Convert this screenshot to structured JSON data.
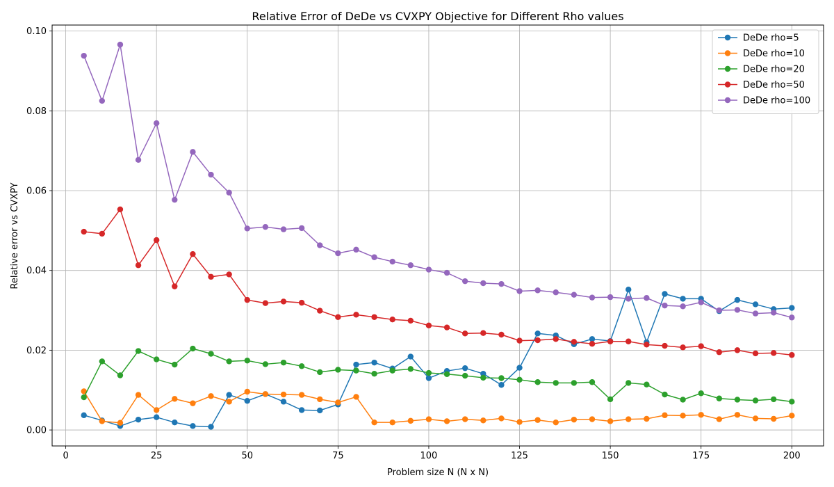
{
  "chart_data": {
    "type": "line",
    "title": "Relative Error of DeDe vs CVXPY Objective for Different Rho values",
    "xlabel": "Problem size N (N x N)",
    "ylabel": "Relative error vs CVXPY",
    "xlim": [
      -3.75,
      208.75
    ],
    "ylim": [
      -0.004,
      0.1015
    ],
    "xticks": [
      0,
      25,
      50,
      75,
      100,
      125,
      150,
      175,
      200
    ],
    "yticks": [
      0.0,
      0.02,
      0.04,
      0.06,
      0.08,
      0.1
    ],
    "ytick_labels": [
      "0.00",
      "0.02",
      "0.04",
      "0.06",
      "0.08",
      "0.10"
    ],
    "grid": true,
    "legend_position": "top-right",
    "x": [
      5,
      10,
      15,
      20,
      25,
      30,
      35,
      40,
      45,
      50,
      55,
      60,
      65,
      70,
      75,
      80,
      85,
      90,
      95,
      100,
      105,
      110,
      115,
      120,
      125,
      130,
      135,
      140,
      145,
      150,
      155,
      160,
      165,
      170,
      175,
      180,
      185,
      190,
      195,
      200
    ],
    "series": [
      {
        "name": "DeDe rho=5",
        "color": "#1f77b4",
        "values": [
          0.0037,
          0.0024,
          0.001,
          0.0026,
          0.0032,
          0.0019,
          0.001,
          0.0008,
          0.0088,
          0.0073,
          0.009,
          0.0071,
          0.005,
          0.0049,
          0.0064,
          0.0164,
          0.0169,
          0.0154,
          0.0184,
          0.013,
          0.0148,
          0.0155,
          0.0141,
          0.0113,
          0.0156,
          0.0242,
          0.0237,
          0.0215,
          0.0228,
          0.0223,
          0.0352,
          0.022,
          0.0341,
          0.0329,
          0.0329,
          0.0298,
          0.0326,
          0.0315,
          0.0303,
          0.0306
        ]
      },
      {
        "name": "DeDe rho=10",
        "color": "#ff7f0e",
        "values": [
          0.0097,
          0.0022,
          0.0018,
          0.0088,
          0.005,
          0.0078,
          0.0067,
          0.0085,
          0.0071,
          0.0096,
          0.009,
          0.0089,
          0.0088,
          0.0077,
          0.0069,
          0.0083,
          0.0019,
          0.0019,
          0.0023,
          0.0027,
          0.0022,
          0.0027,
          0.0024,
          0.0029,
          0.002,
          0.0025,
          0.0019,
          0.0026,
          0.0027,
          0.0022,
          0.0027,
          0.0028,
          0.0037,
          0.0036,
          0.0038,
          0.0027,
          0.0038,
          0.0029,
          0.0028,
          0.0036
        ]
      },
      {
        "name": "DeDe rho=20",
        "color": "#2ca02c",
        "values": [
          0.0082,
          0.0172,
          0.0137,
          0.0198,
          0.0177,
          0.0164,
          0.0204,
          0.0191,
          0.0172,
          0.0174,
          0.0165,
          0.0169,
          0.016,
          0.0145,
          0.0151,
          0.0149,
          0.0141,
          0.0149,
          0.0153,
          0.0143,
          0.014,
          0.0136,
          0.0131,
          0.013,
          0.0126,
          0.012,
          0.0118,
          0.0118,
          0.012,
          0.0077,
          0.0118,
          0.0114,
          0.0089,
          0.0076,
          0.0092,
          0.0079,
          0.0076,
          0.0074,
          0.0077,
          0.0071
        ]
      },
      {
        "name": "DeDe rho=50",
        "color": "#d62728",
        "values": [
          0.0497,
          0.0492,
          0.0553,
          0.0413,
          0.0476,
          0.036,
          0.0441,
          0.0384,
          0.039,
          0.0326,
          0.0318,
          0.0322,
          0.0319,
          0.0299,
          0.0283,
          0.0289,
          0.0283,
          0.0277,
          0.0274,
          0.0262,
          0.0257,
          0.0242,
          0.0243,
          0.0239,
          0.0224,
          0.0225,
          0.0228,
          0.0221,
          0.0216,
          0.0222,
          0.0222,
          0.0214,
          0.0211,
          0.0207,
          0.021,
          0.0195,
          0.02,
          0.0192,
          0.0193,
          0.0188
        ]
      },
      {
        "name": "DeDe rho=100",
        "color": "#9467bd",
        "values": [
          0.0938,
          0.0825,
          0.0966,
          0.0677,
          0.0769,
          0.0577,
          0.0697,
          0.064,
          0.0595,
          0.0505,
          0.0509,
          0.0503,
          0.0506,
          0.0463,
          0.0443,
          0.0452,
          0.0433,
          0.0422,
          0.0413,
          0.0402,
          0.0394,
          0.0373,
          0.0368,
          0.0366,
          0.0348,
          0.035,
          0.0345,
          0.0339,
          0.0332,
          0.0333,
          0.0329,
          0.0331,
          0.0312,
          0.031,
          0.032,
          0.03,
          0.0301,
          0.0292,
          0.0294,
          0.0282
        ]
      }
    ]
  }
}
